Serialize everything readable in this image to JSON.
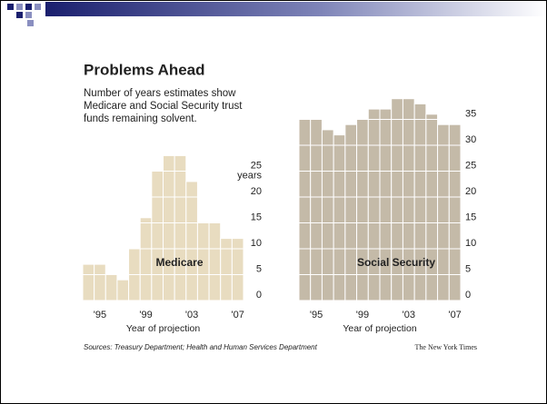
{
  "graphic": {
    "title": "Problems Ahead",
    "subtitle": [
      "Number of years estimates show",
      "Medicare and Social Security trust",
      "funds remaining solvent."
    ],
    "source": "Sources: Treasury Department; Health and Human Services Department",
    "credit": "The New York Times"
  },
  "chart_data": [
    {
      "type": "bar",
      "label": "Medicare",
      "xlabel": "Year of projection",
      "y_unit": "years",
      "color": "#e8dcc0",
      "categories": [
        null,
        "'95",
        null,
        null,
        null,
        "'99",
        null,
        null,
        null,
        "'03",
        null,
        null,
        null,
        "'07"
      ],
      "values": [
        7,
        7,
        5,
        4,
        10,
        16,
        25,
        28,
        28,
        23,
        15,
        15,
        12,
        12
      ],
      "ylim": [
        0,
        40
      ],
      "yticks": [
        0,
        5,
        10,
        15,
        20,
        25
      ],
      "grid": true
    },
    {
      "type": "bar",
      "label": "Social Security",
      "xlabel": "Year of projection",
      "color": "#c4baa8",
      "categories": [
        null,
        "'95",
        null,
        null,
        null,
        "'99",
        null,
        null,
        null,
        "'03",
        null,
        null,
        null,
        "'07"
      ],
      "values": [
        35,
        35,
        33,
        32,
        34,
        35,
        37,
        37,
        39,
        39,
        38,
        36,
        34,
        34
      ],
      "ylim": [
        0,
        40
      ],
      "yticks": [
        0,
        5,
        10,
        15,
        20,
        25,
        30,
        35
      ],
      "grid": true
    }
  ]
}
